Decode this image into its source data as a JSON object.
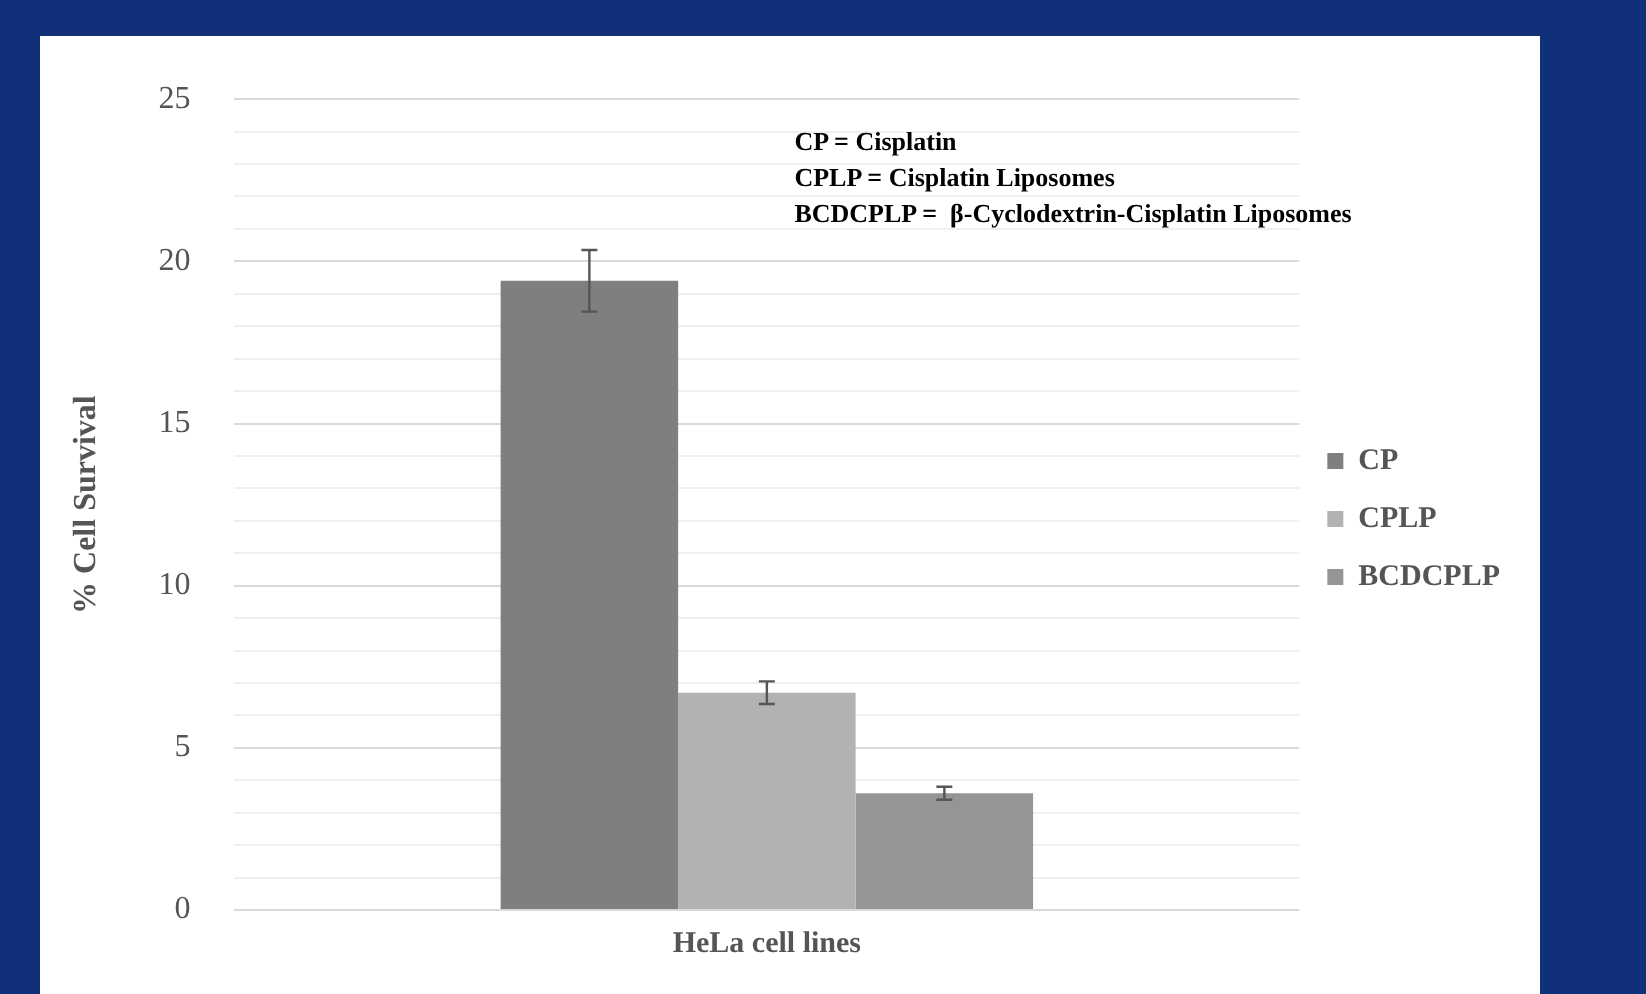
{
  "chart_data": {
    "type": "bar",
    "categories": [
      "HeLa cell lines"
    ],
    "ylabel": "% Cell Survival",
    "series": [
      {
        "name": "CP",
        "color": "#7f7f7f",
        "values": [
          19.4
        ],
        "errors": [
          0.95
        ]
      },
      {
        "name": "CPLP",
        "color": "#b2b2b2",
        "values": [
          6.7
        ],
        "errors": [
          0.35
        ]
      },
      {
        "name": "BCDCPLP",
        "color": "#959595",
        "values": [
          3.6
        ],
        "errors": [
          0.2
        ]
      }
    ],
    "ylim": [
      0,
      25
    ],
    "yticks": [
      0,
      {
        "value": 1,
        "label": null
      },
      {
        "value": 2,
        "label": null
      },
      {
        "value": 3,
        "label": null
      },
      {
        "value": 4,
        "label": null
      },
      5,
      {
        "value": 6,
        "label": null
      },
      {
        "value": 7,
        "label": null
      },
      {
        "value": 8,
        "label": null
      },
      {
        "value": 9,
        "label": null
      },
      10,
      {
        "value": 11,
        "label": null
      },
      {
        "value": 12,
        "label": null
      },
      {
        "value": 13,
        "label": null
      },
      {
        "value": 14,
        "label": null
      },
      15,
      {
        "value": 16,
        "label": null
      },
      {
        "value": 17,
        "label": null
      },
      {
        "value": 18,
        "label": null
      },
      {
        "value": 19,
        "label": null
      },
      20,
      {
        "value": 21,
        "label": null
      },
      {
        "value": 22,
        "label": null
      },
      {
        "value": 23,
        "label": null
      },
      {
        "value": 24,
        "label": null
      },
      25
    ],
    "grid": "y",
    "legend": "right",
    "annotations": [
      "CP = Cisplatin",
      "CPLP = Cisplatin Liposomes",
      "BCDCPLP =  β-Cyclodextrin-Cisplatin Liposomes"
    ]
  }
}
